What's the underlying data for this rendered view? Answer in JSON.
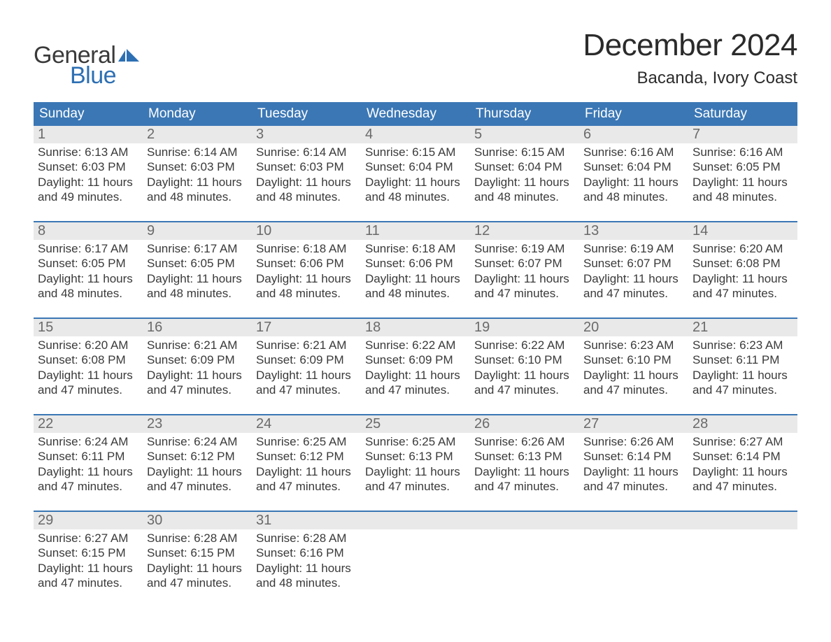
{
  "logo": {
    "text_general": "General",
    "text_blue": "Blue",
    "flag_color": "#2d6fb3"
  },
  "title": "December 2024",
  "location": "Bacanda, Ivory Coast",
  "colors": {
    "header_bg": "#3b77b5",
    "header_text": "#ffffff",
    "daynum_bg": "#e9e9e9",
    "daynum_text": "#6a6a6a",
    "body_text": "#3a3a3a",
    "week_divider": "#3b77b5",
    "page_bg": "#ffffff"
  },
  "typography": {
    "title_fontsize": 44,
    "location_fontsize": 24,
    "weekday_fontsize": 19,
    "daynum_fontsize": 20,
    "body_fontsize": 17,
    "logo_fontsize": 34
  },
  "weekdays": [
    "Sunday",
    "Monday",
    "Tuesday",
    "Wednesday",
    "Thursday",
    "Friday",
    "Saturday"
  ],
  "weeks": [
    [
      {
        "n": "1",
        "sunrise": "Sunrise: 6:13 AM",
        "sunset": "Sunset: 6:03 PM",
        "d1": "Daylight: 11 hours",
        "d2": "and 49 minutes."
      },
      {
        "n": "2",
        "sunrise": "Sunrise: 6:14 AM",
        "sunset": "Sunset: 6:03 PM",
        "d1": "Daylight: 11 hours",
        "d2": "and 48 minutes."
      },
      {
        "n": "3",
        "sunrise": "Sunrise: 6:14 AM",
        "sunset": "Sunset: 6:03 PM",
        "d1": "Daylight: 11 hours",
        "d2": "and 48 minutes."
      },
      {
        "n": "4",
        "sunrise": "Sunrise: 6:15 AM",
        "sunset": "Sunset: 6:04 PM",
        "d1": "Daylight: 11 hours",
        "d2": "and 48 minutes."
      },
      {
        "n": "5",
        "sunrise": "Sunrise: 6:15 AM",
        "sunset": "Sunset: 6:04 PM",
        "d1": "Daylight: 11 hours",
        "d2": "and 48 minutes."
      },
      {
        "n": "6",
        "sunrise": "Sunrise: 6:16 AM",
        "sunset": "Sunset: 6:04 PM",
        "d1": "Daylight: 11 hours",
        "d2": "and 48 minutes."
      },
      {
        "n": "7",
        "sunrise": "Sunrise: 6:16 AM",
        "sunset": "Sunset: 6:05 PM",
        "d1": "Daylight: 11 hours",
        "d2": "and 48 minutes."
      }
    ],
    [
      {
        "n": "8",
        "sunrise": "Sunrise: 6:17 AM",
        "sunset": "Sunset: 6:05 PM",
        "d1": "Daylight: 11 hours",
        "d2": "and 48 minutes."
      },
      {
        "n": "9",
        "sunrise": "Sunrise: 6:17 AM",
        "sunset": "Sunset: 6:05 PM",
        "d1": "Daylight: 11 hours",
        "d2": "and 48 minutes."
      },
      {
        "n": "10",
        "sunrise": "Sunrise: 6:18 AM",
        "sunset": "Sunset: 6:06 PM",
        "d1": "Daylight: 11 hours",
        "d2": "and 48 minutes."
      },
      {
        "n": "11",
        "sunrise": "Sunrise: 6:18 AM",
        "sunset": "Sunset: 6:06 PM",
        "d1": "Daylight: 11 hours",
        "d2": "and 48 minutes."
      },
      {
        "n": "12",
        "sunrise": "Sunrise: 6:19 AM",
        "sunset": "Sunset: 6:07 PM",
        "d1": "Daylight: 11 hours",
        "d2": "and 47 minutes."
      },
      {
        "n": "13",
        "sunrise": "Sunrise: 6:19 AM",
        "sunset": "Sunset: 6:07 PM",
        "d1": "Daylight: 11 hours",
        "d2": "and 47 minutes."
      },
      {
        "n": "14",
        "sunrise": "Sunrise: 6:20 AM",
        "sunset": "Sunset: 6:08 PM",
        "d1": "Daylight: 11 hours",
        "d2": "and 47 minutes."
      }
    ],
    [
      {
        "n": "15",
        "sunrise": "Sunrise: 6:20 AM",
        "sunset": "Sunset: 6:08 PM",
        "d1": "Daylight: 11 hours",
        "d2": "and 47 minutes."
      },
      {
        "n": "16",
        "sunrise": "Sunrise: 6:21 AM",
        "sunset": "Sunset: 6:09 PM",
        "d1": "Daylight: 11 hours",
        "d2": "and 47 minutes."
      },
      {
        "n": "17",
        "sunrise": "Sunrise: 6:21 AM",
        "sunset": "Sunset: 6:09 PM",
        "d1": "Daylight: 11 hours",
        "d2": "and 47 minutes."
      },
      {
        "n": "18",
        "sunrise": "Sunrise: 6:22 AM",
        "sunset": "Sunset: 6:09 PM",
        "d1": "Daylight: 11 hours",
        "d2": "and 47 minutes."
      },
      {
        "n": "19",
        "sunrise": "Sunrise: 6:22 AM",
        "sunset": "Sunset: 6:10 PM",
        "d1": "Daylight: 11 hours",
        "d2": "and 47 minutes."
      },
      {
        "n": "20",
        "sunrise": "Sunrise: 6:23 AM",
        "sunset": "Sunset: 6:10 PM",
        "d1": "Daylight: 11 hours",
        "d2": "and 47 minutes."
      },
      {
        "n": "21",
        "sunrise": "Sunrise: 6:23 AM",
        "sunset": "Sunset: 6:11 PM",
        "d1": "Daylight: 11 hours",
        "d2": "and 47 minutes."
      }
    ],
    [
      {
        "n": "22",
        "sunrise": "Sunrise: 6:24 AM",
        "sunset": "Sunset: 6:11 PM",
        "d1": "Daylight: 11 hours",
        "d2": "and 47 minutes."
      },
      {
        "n": "23",
        "sunrise": "Sunrise: 6:24 AM",
        "sunset": "Sunset: 6:12 PM",
        "d1": "Daylight: 11 hours",
        "d2": "and 47 minutes."
      },
      {
        "n": "24",
        "sunrise": "Sunrise: 6:25 AM",
        "sunset": "Sunset: 6:12 PM",
        "d1": "Daylight: 11 hours",
        "d2": "and 47 minutes."
      },
      {
        "n": "25",
        "sunrise": "Sunrise: 6:25 AM",
        "sunset": "Sunset: 6:13 PM",
        "d1": "Daylight: 11 hours",
        "d2": "and 47 minutes."
      },
      {
        "n": "26",
        "sunrise": "Sunrise: 6:26 AM",
        "sunset": "Sunset: 6:13 PM",
        "d1": "Daylight: 11 hours",
        "d2": "and 47 minutes."
      },
      {
        "n": "27",
        "sunrise": "Sunrise: 6:26 AM",
        "sunset": "Sunset: 6:14 PM",
        "d1": "Daylight: 11 hours",
        "d2": "and 47 minutes."
      },
      {
        "n": "28",
        "sunrise": "Sunrise: 6:27 AM",
        "sunset": "Sunset: 6:14 PM",
        "d1": "Daylight: 11 hours",
        "d2": "and 47 minutes."
      }
    ],
    [
      {
        "n": "29",
        "sunrise": "Sunrise: 6:27 AM",
        "sunset": "Sunset: 6:15 PM",
        "d1": "Daylight: 11 hours",
        "d2": "and 47 minutes."
      },
      {
        "n": "30",
        "sunrise": "Sunrise: 6:28 AM",
        "sunset": "Sunset: 6:15 PM",
        "d1": "Daylight: 11 hours",
        "d2": "and 47 minutes."
      },
      {
        "n": "31",
        "sunrise": "Sunrise: 6:28 AM",
        "sunset": "Sunset: 6:16 PM",
        "d1": "Daylight: 11 hours",
        "d2": "and 48 minutes."
      },
      {
        "empty": true
      },
      {
        "empty": true
      },
      {
        "empty": true
      },
      {
        "empty": true
      }
    ]
  ]
}
